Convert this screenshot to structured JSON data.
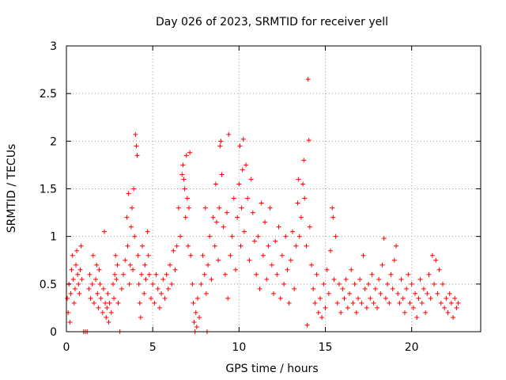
{
  "chart_data": {
    "type": "scatter",
    "title": "Day 026 of 2023, SRMTID for receiver yell",
    "xlabel": "GPS time / hours",
    "ylabel": "SRMTID / TECUs",
    "xlim": [
      0,
      24
    ],
    "ylim": [
      0,
      3
    ],
    "xticks": [
      0,
      5,
      10,
      15,
      20
    ],
    "xtick_labels": [
      "0",
      "5",
      "10",
      "15",
      "20"
    ],
    "yticks": [
      0,
      0.5,
      1,
      1.5,
      2,
      2.5,
      3
    ],
    "ytick_labels": [
      "0",
      "0.5",
      "1",
      "1.5",
      "2",
      "2.5",
      "3"
    ],
    "grid": true,
    "marker": "+",
    "color": "#ff0000",
    "series": [
      {
        "name": "SRMTID",
        "points": [
          [
            0.05,
            0.35
          ],
          [
            0.1,
            0.2
          ],
          [
            0.15,
            0.5
          ],
          [
            0.2,
            0.1
          ],
          [
            0.25,
            0.4
          ],
          [
            0.3,
            0.65
          ],
          [
            0.35,
            0.8
          ],
          [
            0.4,
            0.55
          ],
          [
            0.45,
            0.3
          ],
          [
            0.5,
            0.45
          ],
          [
            0.55,
            0.7
          ],
          [
            0.6,
            0.85
          ],
          [
            0.65,
            0.6
          ],
          [
            0.7,
            0.5
          ],
          [
            0.75,
            0.4
          ],
          [
            0.8,
            0.65
          ],
          [
            0.85,
            0.9
          ],
          [
            0.9,
            0.55
          ],
          [
            1.0,
            0.0
          ],
          [
            1.1,
            0.0
          ],
          [
            1.2,
            0.0
          ],
          [
            1.3,
            0.45
          ],
          [
            1.35,
            0.6
          ],
          [
            1.4,
            0.35
          ],
          [
            1.5,
            0.5
          ],
          [
            1.55,
            0.8
          ],
          [
            1.6,
            0.3
          ],
          [
            1.7,
            0.55
          ],
          [
            1.75,
            0.7
          ],
          [
            1.8,
            0.4
          ],
          [
            1.85,
            0.25
          ],
          [
            1.9,
            0.65
          ],
          [
            1.95,
            0.5
          ],
          [
            2.0,
            0.35
          ],
          [
            2.1,
            0.2
          ],
          [
            2.15,
            0.45
          ],
          [
            2.2,
            1.05
          ],
          [
            2.25,
            0.3
          ],
          [
            2.3,
            0.15
          ],
          [
            2.35,
            0.25
          ],
          [
            2.4,
            0.4
          ],
          [
            2.45,
            0.1
          ],
          [
            2.5,
            0.3
          ],
          [
            2.6,
            0.2
          ],
          [
            2.7,
            0.5
          ],
          [
            2.75,
            0.35
          ],
          [
            2.8,
            0.6
          ],
          [
            2.85,
            0.8
          ],
          [
            2.9,
            0.55
          ],
          [
            2.95,
            0.7
          ],
          [
            3.0,
            0.3
          ],
          [
            3.1,
            0.0
          ],
          [
            3.2,
            0.45
          ],
          [
            3.3,
            0.6
          ],
          [
            3.4,
            0.75
          ],
          [
            3.5,
            1.2
          ],
          [
            3.55,
            0.9
          ],
          [
            3.6,
            1.45
          ],
          [
            3.65,
            0.5
          ],
          [
            3.7,
            0.7
          ],
          [
            3.75,
            1.1
          ],
          [
            3.8,
            1.3
          ],
          [
            3.85,
            0.65
          ],
          [
            3.9,
            1.5
          ],
          [
            3.95,
            1.0
          ],
          [
            4.0,
            2.07
          ],
          [
            4.05,
            1.95
          ],
          [
            4.1,
            1.85
          ],
          [
            4.15,
            0.8
          ],
          [
            4.2,
            0.5
          ],
          [
            4.25,
            0.3
          ],
          [
            4.3,
            0.15
          ],
          [
            4.35,
            0.6
          ],
          [
            4.4,
            0.9
          ],
          [
            4.5,
            0.4
          ],
          [
            4.55,
            0.7
          ],
          [
            4.6,
            0.55
          ],
          [
            4.7,
            1.05
          ],
          [
            4.75,
            0.8
          ],
          [
            4.8,
            0.6
          ],
          [
            4.9,
            0.35
          ],
          [
            5.0,
            0.5
          ],
          [
            5.1,
            0.3
          ],
          [
            5.2,
            0.6
          ],
          [
            5.3,
            0.45
          ],
          [
            5.4,
            0.25
          ],
          [
            5.5,
            0.4
          ],
          [
            5.6,
            0.55
          ],
          [
            5.7,
            0.35
          ],
          [
            5.8,
            0.6
          ],
          [
            5.9,
            0.45
          ],
          [
            6.0,
            0.7
          ],
          [
            6.1,
            0.5
          ],
          [
            6.2,
            0.85
          ],
          [
            6.3,
            0.65
          ],
          [
            6.4,
            0.9
          ],
          [
            6.5,
            1.3
          ],
          [
            6.6,
            1.0
          ],
          [
            6.7,
            1.65
          ],
          [
            6.75,
            1.75
          ],
          [
            6.8,
            1.6
          ],
          [
            6.85,
            1.5
          ],
          [
            6.9,
            1.2
          ],
          [
            6.95,
            1.85
          ],
          [
            7.0,
            1.4
          ],
          [
            7.05,
            0.9
          ],
          [
            7.1,
            1.3
          ],
          [
            7.15,
            1.88
          ],
          [
            7.2,
            0.8
          ],
          [
            7.3,
            0.5
          ],
          [
            7.35,
            0.3
          ],
          [
            7.4,
            0.1
          ],
          [
            7.45,
            0.0
          ],
          [
            7.5,
            0.2
          ],
          [
            7.55,
            0.05
          ],
          [
            7.6,
            0.35
          ],
          [
            7.7,
            0.15
          ],
          [
            7.8,
            0.5
          ],
          [
            7.9,
            0.8
          ],
          [
            8.0,
            0.6
          ],
          [
            8.05,
            1.3
          ],
          [
            8.1,
            0.4
          ],
          [
            8.15,
            0.0
          ],
          [
            8.2,
            0.7
          ],
          [
            8.3,
            1.0
          ],
          [
            8.4,
            0.55
          ],
          [
            8.5,
            1.2
          ],
          [
            8.6,
            0.9
          ],
          [
            8.65,
            1.55
          ],
          [
            8.7,
            1.15
          ],
          [
            8.8,
            0.75
          ],
          [
            8.85,
            1.3
          ],
          [
            8.9,
            1.95
          ],
          [
            8.95,
            2.0
          ],
          [
            9.0,
            1.65
          ],
          [
            9.1,
            1.1
          ],
          [
            9.2,
            0.6
          ],
          [
            9.3,
            1.25
          ],
          [
            9.35,
            0.35
          ],
          [
            9.4,
            2.07
          ],
          [
            9.5,
            0.8
          ],
          [
            9.6,
            1.0
          ],
          [
            9.7,
            1.4
          ],
          [
            9.8,
            0.65
          ],
          [
            9.9,
            1.2
          ],
          [
            10.0,
            1.55
          ],
          [
            10.05,
            1.95
          ],
          [
            10.1,
            0.9
          ],
          [
            10.15,
            1.3
          ],
          [
            10.2,
            1.7
          ],
          [
            10.25,
            2.02
          ],
          [
            10.3,
            1.05
          ],
          [
            10.4,
            1.75
          ],
          [
            10.5,
            1.4
          ],
          [
            10.6,
            0.75
          ],
          [
            10.7,
            1.6
          ],
          [
            10.8,
            1.25
          ],
          [
            10.9,
            0.95
          ],
          [
            11.0,
            0.6
          ],
          [
            11.1,
            1.0
          ],
          [
            11.2,
            0.45
          ],
          [
            11.3,
            1.35
          ],
          [
            11.4,
            0.8
          ],
          [
            11.5,
            1.15
          ],
          [
            11.6,
            0.55
          ],
          [
            11.7,
            0.9
          ],
          [
            11.8,
            1.3
          ],
          [
            11.9,
            0.7
          ],
          [
            12.0,
            0.4
          ],
          [
            12.1,
            0.95
          ],
          [
            12.2,
            0.6
          ],
          [
            12.3,
            1.1
          ],
          [
            12.4,
            0.35
          ],
          [
            12.5,
            0.8
          ],
          [
            12.6,
            0.5
          ],
          [
            12.7,
            1.0
          ],
          [
            12.8,
            0.65
          ],
          [
            12.9,
            0.3
          ],
          [
            13.0,
            0.75
          ],
          [
            13.1,
            1.05
          ],
          [
            13.2,
            0.45
          ],
          [
            13.3,
            0.9
          ],
          [
            13.4,
            1.35
          ],
          [
            13.45,
            1.6
          ],
          [
            13.5,
            1.0
          ],
          [
            13.6,
            1.2
          ],
          [
            13.7,
            1.55
          ],
          [
            13.75,
            1.8
          ],
          [
            13.8,
            1.4
          ],
          [
            13.9,
            0.9
          ],
          [
            13.95,
            0.07
          ],
          [
            14.0,
            2.65
          ],
          [
            14.05,
            2.01
          ],
          [
            14.1,
            1.1
          ],
          [
            14.2,
            0.7
          ],
          [
            14.3,
            0.45
          ],
          [
            14.4,
            0.3
          ],
          [
            14.5,
            0.6
          ],
          [
            14.6,
            0.2
          ],
          [
            14.7,
            0.35
          ],
          [
            14.8,
            0.15
          ],
          [
            14.9,
            0.5
          ],
          [
            15.0,
            0.25
          ],
          [
            15.1,
            0.65
          ],
          [
            15.2,
            0.4
          ],
          [
            15.3,
            0.85
          ],
          [
            15.4,
            1.3
          ],
          [
            15.45,
            1.2
          ],
          [
            15.5,
            0.55
          ],
          [
            15.6,
            1.0
          ],
          [
            15.7,
            0.3
          ],
          [
            15.8,
            0.5
          ],
          [
            15.9,
            0.2
          ],
          [
            16.0,
            0.45
          ],
          [
            16.1,
            0.35
          ],
          [
            16.2,
            0.55
          ],
          [
            16.3,
            0.25
          ],
          [
            16.4,
            0.4
          ],
          [
            16.5,
            0.65
          ],
          [
            16.6,
            0.3
          ],
          [
            16.7,
            0.5
          ],
          [
            16.8,
            0.2
          ],
          [
            16.9,
            0.35
          ],
          [
            17.0,
            0.55
          ],
          [
            17.1,
            0.3
          ],
          [
            17.2,
            0.8
          ],
          [
            17.3,
            0.45
          ],
          [
            17.4,
            0.25
          ],
          [
            17.5,
            0.5
          ],
          [
            17.6,
            0.35
          ],
          [
            17.7,
            0.6
          ],
          [
            17.8,
            0.3
          ],
          [
            17.9,
            0.45
          ],
          [
            18.0,
            0.25
          ],
          [
            18.1,
            0.55
          ],
          [
            18.2,
            0.4
          ],
          [
            18.3,
            0.7
          ],
          [
            18.4,
            0.98
          ],
          [
            18.5,
            0.35
          ],
          [
            18.6,
            0.5
          ],
          [
            18.7,
            0.3
          ],
          [
            18.8,
            0.6
          ],
          [
            18.9,
            0.45
          ],
          [
            19.0,
            0.75
          ],
          [
            19.1,
            0.9
          ],
          [
            19.2,
            0.4
          ],
          [
            19.3,
            0.3
          ],
          [
            19.4,
            0.55
          ],
          [
            19.5,
            0.35
          ],
          [
            19.6,
            0.2
          ],
          [
            19.7,
            0.45
          ],
          [
            19.8,
            0.6
          ],
          [
            19.9,
            0.3
          ],
          [
            20.0,
            0.5
          ],
          [
            20.1,
            0.25
          ],
          [
            20.2,
            0.4
          ],
          [
            20.3,
            0.15
          ],
          [
            20.4,
            0.35
          ],
          [
            20.5,
            0.55
          ],
          [
            20.6,
            0.3
          ],
          [
            20.7,
            0.45
          ],
          [
            20.8,
            0.2
          ],
          [
            20.9,
            0.4
          ],
          [
            21.0,
            0.6
          ],
          [
            21.1,
            0.35
          ],
          [
            21.2,
            0.8
          ],
          [
            21.3,
            0.5
          ],
          [
            21.4,
            0.75
          ],
          [
            21.5,
            0.4
          ],
          [
            21.6,
            0.65
          ],
          [
            21.7,
            0.3
          ],
          [
            21.8,
            0.5
          ],
          [
            21.9,
            0.25
          ],
          [
            22.0,
            0.35
          ],
          [
            22.1,
            0.2
          ],
          [
            22.2,
            0.4
          ],
          [
            22.3,
            0.3
          ],
          [
            22.4,
            0.15
          ],
          [
            22.5,
            0.35
          ],
          [
            22.6,
            0.25
          ],
          [
            22.7,
            0.3
          ]
        ]
      }
    ]
  }
}
